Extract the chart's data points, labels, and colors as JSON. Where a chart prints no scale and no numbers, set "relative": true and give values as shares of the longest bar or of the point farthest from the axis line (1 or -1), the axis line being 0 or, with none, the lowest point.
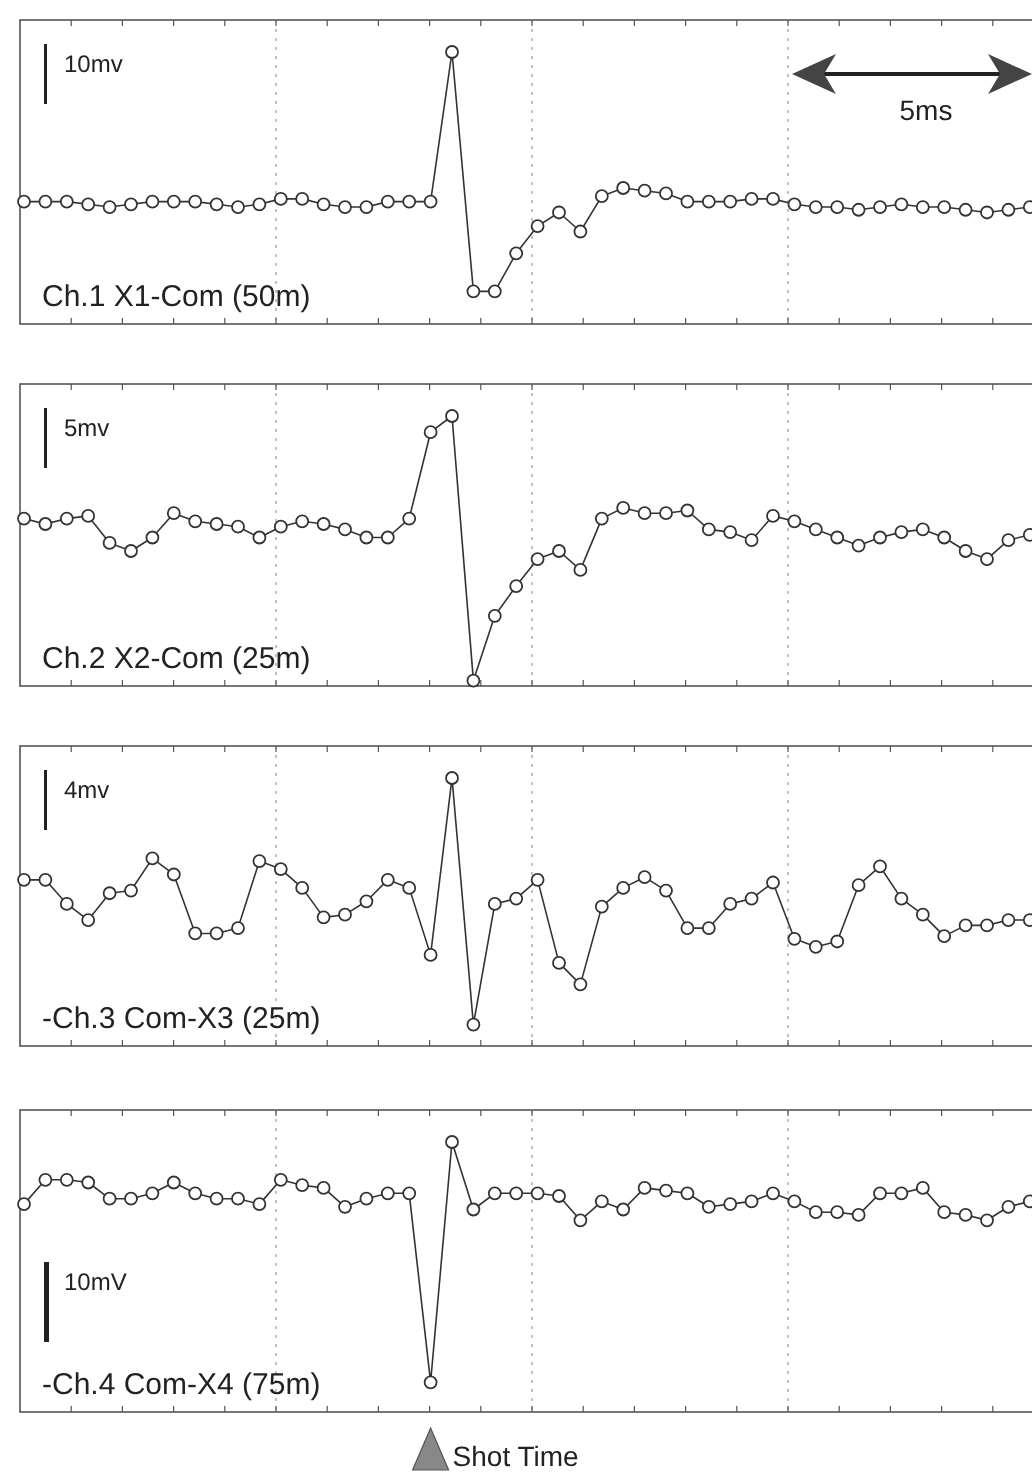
{
  "chart_data": [
    {
      "type": "line",
      "title": "Ch.1  X1-Com (50m)",
      "relative": true,
      "grid": "x",
      "marker": "circle",
      "line_style": "solid",
      "annotations": [
        "10mv",
        "5ms"
      ],
      "categories": [
        null,
        null,
        null,
        null,
        null,
        null,
        null,
        null,
        null,
        null,
        null,
        null,
        null,
        null,
        null,
        null,
        null,
        null,
        null,
        null,
        null,
        null,
        null,
        null,
        null,
        null,
        null,
        null,
        null,
        null,
        null,
        null,
        null,
        null,
        null,
        null,
        null,
        null,
        null,
        null,
        null,
        null,
        null,
        null,
        null,
        null,
        null,
        null
      ],
      "series": [
        {
          "color": "#333333",
          "values": [
            0.45,
            0.45,
            0.45,
            0.44,
            0.43,
            0.44,
            0.45,
            0.45,
            0.45,
            0.44,
            0.43,
            0.44,
            0.46,
            0.46,
            0.44,
            0.43,
            0.43,
            0.45,
            0.45,
            0.45,
            1,
            0.12,
            0.12,
            0.26,
            0.36,
            0.41,
            0.34,
            0.47,
            0.5,
            0.49,
            0.48,
            0.45,
            0.45,
            0.45,
            0.46,
            0.46,
            0.44,
            0.43,
            0.43,
            0.42,
            0.43,
            0.44,
            0.43,
            0.43,
            0.42,
            0.41,
            0.42,
            0.43
          ]
        }
      ]
    },
    {
      "type": "line",
      "title": "Ch.2 X2-Com (25m)",
      "relative": true,
      "grid": "x",
      "marker": "circle",
      "line_style": "solid",
      "annotations": [
        "5mv"
      ],
      "categories": [
        null,
        null,
        null,
        null,
        null,
        null,
        null,
        null,
        null,
        null,
        null,
        null,
        null,
        null,
        null,
        null,
        null,
        null,
        null,
        null,
        null,
        null,
        null,
        null,
        null,
        null,
        null,
        null,
        null,
        null,
        null,
        null,
        null,
        null,
        null,
        null,
        null,
        null,
        null,
        null,
        null,
        null,
        null,
        null,
        null,
        null,
        null,
        null
      ],
      "series": [
        {
          "color": "#333333",
          "values": [
            0.62,
            0.6,
            0.62,
            0.63,
            0.53,
            0.5,
            0.55,
            0.64,
            0.61,
            0.6,
            0.59,
            0.55,
            0.59,
            0.61,
            0.6,
            0.58,
            0.55,
            0.55,
            0.62,
            0.94,
            1,
            0.02,
            0.26,
            0.37,
            0.47,
            0.5,
            0.43,
            0.62,
            0.66,
            0.64,
            0.64,
            0.65,
            0.58,
            0.57,
            0.54,
            0.63,
            0.61,
            0.58,
            0.55,
            0.52,
            0.55,
            0.57,
            0.58,
            0.55,
            0.5,
            0.47,
            0.54,
            0.56
          ]
        }
      ]
    },
    {
      "type": "line",
      "title": "-Ch.3 Com-X3 (25m)",
      "relative": true,
      "grid": "x",
      "marker": "circle",
      "line_style": "solid",
      "annotations": [
        "4mv"
      ],
      "categories": [
        null,
        null,
        null,
        null,
        null,
        null,
        null,
        null,
        null,
        null,
        null,
        null,
        null,
        null,
        null,
        null,
        null,
        null,
        null,
        null,
        null,
        null,
        null,
        null,
        null,
        null,
        null,
        null,
        null,
        null,
        null,
        null,
        null,
        null,
        null,
        null,
        null,
        null,
        null,
        null,
        null,
        null,
        null,
        null,
        null,
        null,
        null,
        null
      ],
      "series": [
        {
          "color": "#333333",
          "values": [
            0.62,
            0.62,
            0.53,
            0.47,
            0.57,
            0.58,
            0.7,
            0.64,
            0.42,
            0.42,
            0.44,
            0.69,
            0.66,
            0.59,
            0.48,
            0.49,
            0.54,
            0.62,
            0.59,
            0.34,
            1,
            0.08,
            0.53,
            0.55,
            0.62,
            0.31,
            0.23,
            0.52,
            0.59,
            0.63,
            0.58,
            0.44,
            0.44,
            0.53,
            0.55,
            0.61,
            0.4,
            0.37,
            0.39,
            0.6,
            0.67,
            0.55,
            0.49,
            0.41,
            0.45,
            0.45,
            0.47,
            0.47
          ]
        }
      ]
    },
    {
      "type": "line",
      "title": "-Ch.4 Com-X4 (75m)",
      "relative": true,
      "grid": "x",
      "marker": "circle",
      "line_style": "solid",
      "annotations": [
        "10mV",
        "Shot Time"
      ],
      "categories": [
        null,
        null,
        null,
        null,
        null,
        null,
        null,
        null,
        null,
        null,
        null,
        null,
        null,
        null,
        null,
        null,
        null,
        null,
        null,
        null,
        null,
        null,
        null,
        null,
        null,
        null,
        null,
        null,
        null,
        null,
        null,
        null,
        null,
        null,
        null,
        null,
        null,
        null,
        null,
        null,
        null,
        null,
        null,
        null,
        null,
        null,
        null,
        null
      ],
      "series": [
        {
          "color": "#333333",
          "values": [
            0.77,
            0.86,
            0.86,
            0.85,
            0.79,
            0.79,
            0.81,
            0.85,
            0.81,
            0.79,
            0.79,
            0.77,
            0.86,
            0.84,
            0.83,
            0.76,
            0.79,
            0.81,
            0.81,
            0.11,
            1,
            0.75,
            0.81,
            0.81,
            0.81,
            0.8,
            0.71,
            0.78,
            0.75,
            0.83,
            0.82,
            0.81,
            0.76,
            0.77,
            0.78,
            0.81,
            0.78,
            0.74,
            0.74,
            0.73,
            0.81,
            0.81,
            0.83,
            0.74,
            0.73,
            0.71,
            0.76,
            0.78
          ]
        }
      ]
    }
  ]
}
